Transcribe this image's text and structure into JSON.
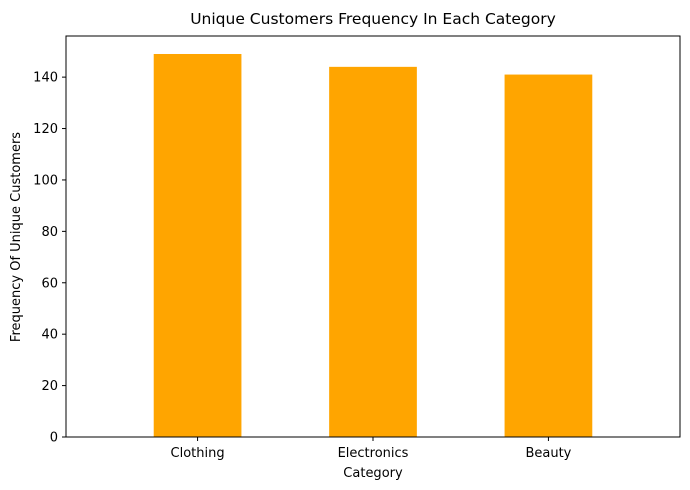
{
  "chart_data": {
    "type": "bar",
    "title": "Unique Customers Frequency In Each Category",
    "xlabel": "Category",
    "ylabel": "Frequency Of Unique Customers",
    "categories": [
      "Clothing",
      "Electronics",
      "Beauty"
    ],
    "values": [
      149,
      144,
      141
    ],
    "ylim": [
      0,
      156
    ],
    "yticks": [
      0,
      20,
      40,
      60,
      80,
      100,
      120,
      140
    ],
    "bar_color": "#FFA500",
    "grid": false,
    "legend": "none"
  }
}
